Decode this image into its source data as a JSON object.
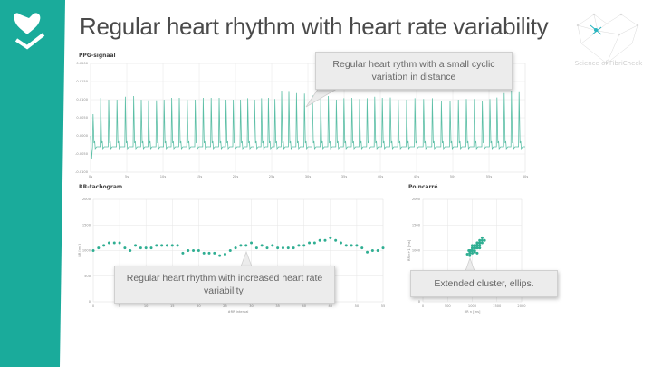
{
  "slide": {
    "title": "Regular heart rhythm with heart rate variability",
    "logo_text": "Science of FibriCheck",
    "accent_color": "#1aab9b",
    "series_color": "#2fae92"
  },
  "callouts": {
    "ppg": "Regular heart rythm with a small cyclic variation in distance",
    "rr": "Regular heart rhythm with increased heart rate variability.",
    "poincare": "Extended cluster, ellips."
  },
  "chart_data": [
    {
      "type": "line",
      "title": "PPG-signaal",
      "xlim": [
        0,
        60
      ],
      "ylim": [
        -0.01,
        0.02
      ],
      "xticks": [
        "0s",
        "5s",
        "10s",
        "15s",
        "20s",
        "25s",
        "30s",
        "35s",
        "40s",
        "45s",
        "50s",
        "55s",
        "60s"
      ],
      "yticks": [
        "0.0200",
        "0.0150",
        "0.0100",
        "0.0050",
        "0.0000",
        "-0.0050",
        "-0.0100"
      ],
      "grid": true,
      "baseline": -0.003,
      "peak_values": [
        0.006,
        0.0105,
        0.01,
        0.01,
        0.0108,
        0.011,
        0.01,
        0.0098,
        0.0098,
        0.01,
        0.0105,
        0.0105,
        0.01,
        0.01,
        0.0105,
        0.0105,
        0.0105,
        0.01,
        0.01,
        0.01,
        0.0104,
        0.01,
        0.0104,
        0.0105,
        0.0102,
        0.0125,
        0.0124,
        0.0118,
        0.0117,
        0.0112,
        0.0108,
        0.011,
        0.01,
        0.0104,
        0.0105,
        0.0102,
        0.0104,
        0.0108,
        0.0105,
        0.0106,
        0.01,
        0.01,
        0.0104,
        0.0102,
        0.0104,
        0.0095,
        0.0096,
        0.01,
        0.0102,
        0.0102,
        0.0097,
        0.0102,
        0.0106,
        0.0118,
        0.0125,
        0.0123
      ]
    },
    {
      "type": "scatter",
      "title": "RR-tachogram",
      "xlabel": "#RR interval",
      "ylabel": "RR [ms]",
      "xlim": [
        0,
        55
      ],
      "ylim": [
        0,
        2000
      ],
      "xticks": [
        "0",
        "5",
        "10",
        "15",
        "20",
        "25",
        "30",
        "35",
        "40",
        "45",
        "50",
        "55"
      ],
      "yticks": [
        "2000",
        "1500",
        "1000",
        "500",
        "0"
      ],
      "grid": true,
      "values": [
        1000,
        1050,
        1100,
        1150,
        1150,
        1150,
        1050,
        1000,
        1100,
        1050,
        1050,
        1050,
        1100,
        1100,
        1100,
        1100,
        1100,
        950,
        1000,
        1000,
        1000,
        950,
        950,
        950,
        900,
        930,
        1000,
        1050,
        1100,
        1100,
        1150,
        1050,
        1100,
        1050,
        1100,
        1050,
        1050,
        1050,
        1050,
        1100,
        1100,
        1150,
        1150,
        1200,
        1200,
        1250,
        1200,
        1150,
        1100,
        1100,
        1100,
        1050,
        970,
        1000,
        1000,
        1050
      ]
    },
    {
      "type": "scatter",
      "title": "Poincarré",
      "xlabel": "RR n [ms]",
      "ylabel": "RR n+1 [ms]",
      "xlim": [
        0,
        2000
      ],
      "ylim": [
        0,
        2000
      ],
      "xticks": [
        "0",
        "500",
        "1000",
        "1500",
        "2000"
      ],
      "yticks": [
        "2000",
        "1500",
        "1000",
        "500",
        "0"
      ],
      "grid": true,
      "x": [
        1000,
        1050,
        1100,
        1150,
        1150,
        1150,
        1050,
        1000,
        1100,
        1050,
        1050,
        1050,
        1100,
        1100,
        1100,
        1100,
        1100,
        950,
        1000,
        1000,
        1000,
        950,
        950,
        950,
        900,
        930,
        1000,
        1050,
        1100,
        1100,
        1150,
        1050,
        1100,
        1050,
        1100,
        1050,
        1050,
        1050,
        1050,
        1100,
        1100,
        1150,
        1150,
        1200,
        1200,
        1250,
        1200,
        1150,
        1100,
        1100,
        1100,
        1050,
        970,
        1000,
        1000
      ],
      "y": [
        1050,
        1100,
        1150,
        1150,
        1150,
        1050,
        1000,
        1100,
        1050,
        1050,
        1050,
        1100,
        1100,
        1100,
        1100,
        1100,
        950,
        1000,
        1000,
        1000,
        950,
        950,
        950,
        900,
        930,
        1000,
        1050,
        1100,
        1100,
        1150,
        1050,
        1100,
        1050,
        1100,
        1050,
        1050,
        1050,
        1050,
        1100,
        1100,
        1150,
        1150,
        1200,
        1200,
        1250,
        1200,
        1150,
        1100,
        1100,
        1100,
        1050,
        970,
        1000,
        1000,
        1050
      ]
    }
  ]
}
